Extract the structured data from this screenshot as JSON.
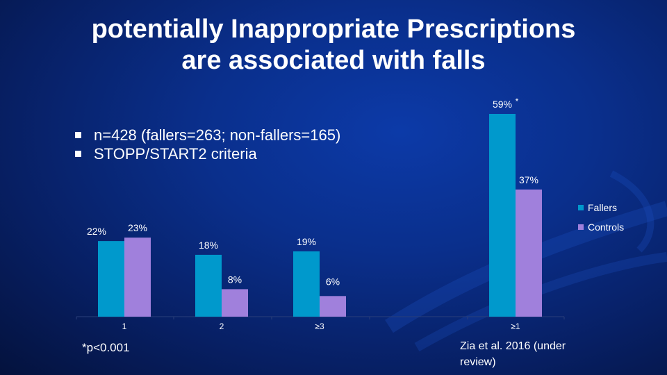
{
  "slide": {
    "title_line1": "potentially Inappropriate Prescriptions",
    "title_line2": "are associated with falls",
    "bullets": [
      "n=428 (fallers=263; non-fallers=165)",
      "STOPP/START2 criteria"
    ],
    "footnote": "*p<0.001",
    "citation": "Zia et al. 2016 (under review)"
  },
  "colors": {
    "fallers": "#0099cc",
    "controls": "#a080dc",
    "axis": "#2a3f7a"
  },
  "chart_data": {
    "type": "bar",
    "categories": [
      "1",
      "2",
      "≥3",
      "≥1"
    ],
    "series": [
      {
        "name": "Fallers",
        "values": [
          22,
          18,
          19,
          59
        ],
        "labels": [
          "22%",
          "18%",
          "19%",
          "59%"
        ]
      },
      {
        "name": "Controls",
        "values": [
          23,
          8,
          6,
          37
        ],
        "labels": [
          "23%",
          "8%",
          "6%",
          "37%"
        ]
      }
    ],
    "annotations": [
      {
        "category": "≥1",
        "series": "Fallers",
        "text": "*"
      }
    ],
    "ylim": [
      0,
      60
    ],
    "legend": "right"
  }
}
